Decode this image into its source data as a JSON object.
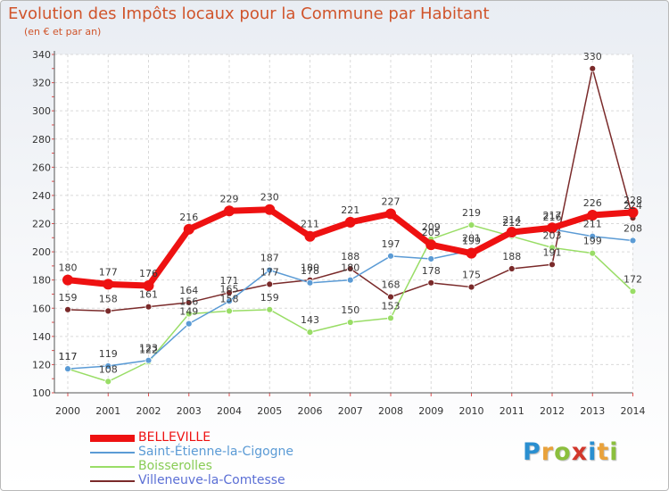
{
  "chart_data": {
    "type": "line",
    "title": "Evolution des Impôts locaux pour la Commune par Habitant",
    "subtitle": "(en € et par an)",
    "xlabel": "",
    "ylabel": "",
    "ylim": [
      100,
      340
    ],
    "yticks": [
      100,
      120,
      140,
      160,
      180,
      200,
      220,
      240,
      260,
      280,
      300,
      320,
      340
    ],
    "x": [
      "2000",
      "2001",
      "2002",
      "2003",
      "2004",
      "2005",
      "2006",
      "2007",
      "2008",
      "2009",
      "2010",
      "2011",
      "2012",
      "2013",
      "2014"
    ],
    "series": [
      {
        "name": "BELLEVILLE",
        "color": "#ee1111",
        "values": [
          180,
          177,
          176,
          216,
          229,
          230,
          211,
          221,
          227,
          205,
          199,
          214,
          217,
          226,
          228
        ]
      },
      {
        "name": "Saint-Étienne-la-Cigogne",
        "color": "#5b9bd5",
        "values": [
          117,
          119,
          123,
          149,
          165,
          187,
          178,
          180,
          197,
          195,
          201,
          212,
          216,
          211,
          208
        ]
      },
      {
        "name": "Boisserolles",
        "color": "#99dd66",
        "values": [
          117,
          108,
          122,
          156,
          158,
          159,
          143,
          150,
          153,
          209,
          219,
          211,
          203,
          199,
          172
        ]
      },
      {
        "name": "Villeneuve-la-Comtesse",
        "color": "#7a2a2a",
        "values": [
          159,
          158,
          161,
          164,
          171,
          177,
          180,
          188,
          168,
          178,
          175,
          188,
          191,
          330,
          224
        ]
      }
    ],
    "point_labels": {
      "BELLEVILLE": [
        "180",
        "177",
        "176",
        "216",
        "229",
        "230",
        "211",
        "221",
        "227",
        "205",
        "199",
        "214",
        "217",
        "226",
        "228"
      ],
      "Saint-Étienne-la-Cigogne": [
        "117",
        "119",
        "123",
        "149",
        "165",
        "187",
        "178",
        "180",
        "197",
        "",
        "201",
        "212",
        "216",
        "211",
        "208"
      ],
      "Boisserolles": [
        "117",
        "108",
        "122",
        "156",
        "158",
        "159",
        "143",
        "150",
        "153",
        "209",
        "219",
        "",
        "203",
        "199",
        "172"
      ],
      "Villeneuve-la-Comtesse": [
        "159",
        "158",
        "161",
        "164",
        "171",
        "177",
        "180",
        "188",
        "168",
        "178",
        "175",
        "188",
        "191",
        "330",
        "224"
      ]
    },
    "legend_position": "bottom-left"
  },
  "logo": {
    "letters": [
      "P",
      "r",
      "o",
      "x",
      "i",
      "t",
      "i"
    ]
  }
}
